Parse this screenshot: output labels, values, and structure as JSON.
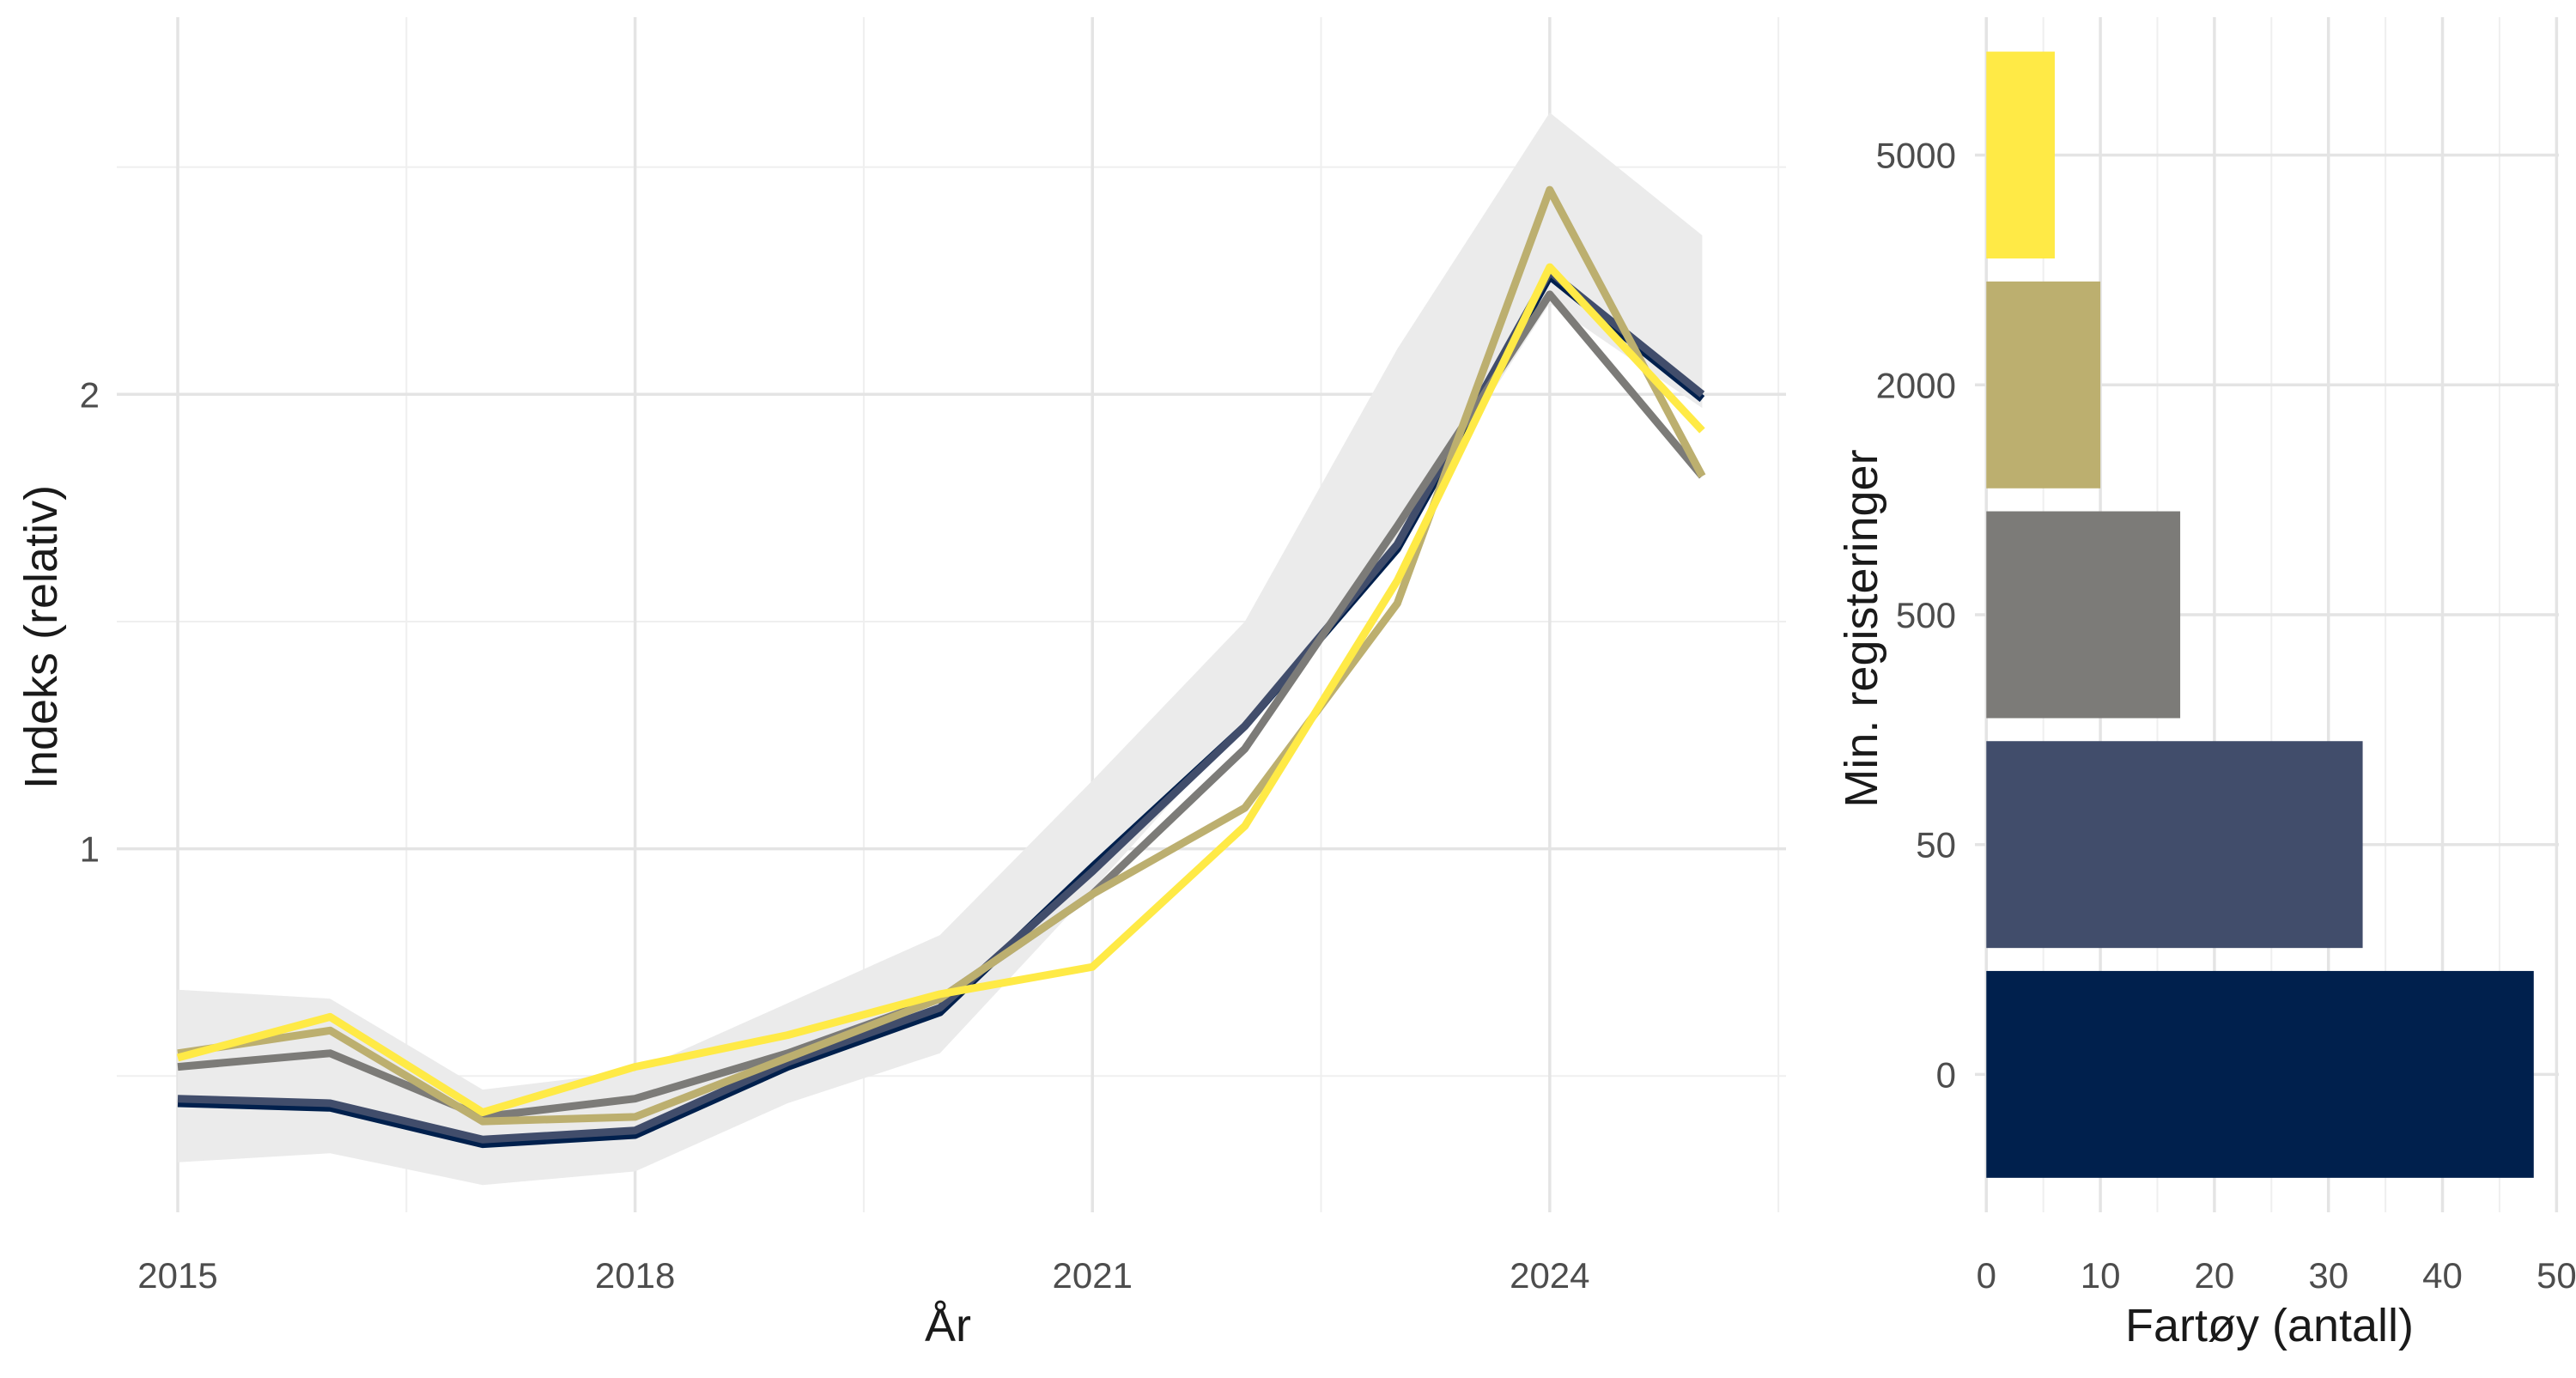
{
  "chart_data": [
    {
      "type": "line",
      "title": "",
      "xlabel": "År",
      "ylabel": "Indeks (relativ)",
      "x": [
        2015,
        2016,
        2017,
        2018,
        2019,
        2020,
        2021,
        2022,
        2023,
        2024,
        2025
      ],
      "xticks": [
        "2015",
        "2018",
        "2021",
        "2024"
      ],
      "yticks": [
        {
          "value": 1,
          "label": "1"
        },
        {
          "value": 2,
          "label": "2"
        }
      ],
      "xlim": [
        2014.6,
        2025.55
      ],
      "ylim": [
        0.2,
        2.83
      ],
      "band": {
        "lower": [
          0.31,
          0.33,
          0.26,
          0.29,
          0.44,
          0.55,
          0.91,
          1.28,
          1.68,
          2.2,
          1.97
        ],
        "upper": [
          0.69,
          0.67,
          0.47,
          0.51,
          0.66,
          0.81,
          1.15,
          1.5,
          2.1,
          2.62,
          2.35
        ]
      },
      "series": [
        {
          "name": "0",
          "color": "#00204d",
          "values": [
            0.44,
            0.43,
            0.35,
            0.37,
            0.52,
            0.64,
            0.96,
            1.27,
            1.66,
            2.26,
            1.99
          ]
        },
        {
          "name": "50",
          "color": "#414d6b",
          "values": [
            0.45,
            0.44,
            0.36,
            0.38,
            0.53,
            0.65,
            0.95,
            1.27,
            1.67,
            2.27,
            2.0
          ]
        },
        {
          "name": "500",
          "color": "#7c7b78",
          "values": [
            0.52,
            0.55,
            0.41,
            0.45,
            0.55,
            0.67,
            0.9,
            1.22,
            1.71,
            2.22,
            1.82
          ]
        },
        {
          "name": "2000",
          "color": "#bcaf6f",
          "values": [
            0.55,
            0.6,
            0.4,
            0.41,
            0.54,
            0.67,
            0.9,
            1.09,
            1.54,
            2.45,
            1.82
          ]
        },
        {
          "name": "5000",
          "color": "#ffea46",
          "values": [
            0.54,
            0.63,
            0.42,
            0.52,
            0.59,
            0.68,
            0.74,
            1.05,
            1.59,
            2.28,
            1.92
          ]
        }
      ]
    },
    {
      "type": "bar",
      "orientation": "horizontal",
      "title": "",
      "xlabel": "Fartøy (antall)",
      "ylabel": "Min. registeringer",
      "categories": [
        "0",
        "50",
        "500",
        "2000",
        "5000"
      ],
      "values": [
        48,
        33,
        17,
        10,
        6
      ],
      "colors": [
        "#00204d",
        "#414d6b",
        "#7c7b78",
        "#bcaf6f",
        "#ffea46"
      ],
      "xticks": [
        "0",
        "10",
        "20",
        "30",
        "40",
        "50"
      ],
      "xlim": [
        -1,
        50.2
      ]
    }
  ]
}
